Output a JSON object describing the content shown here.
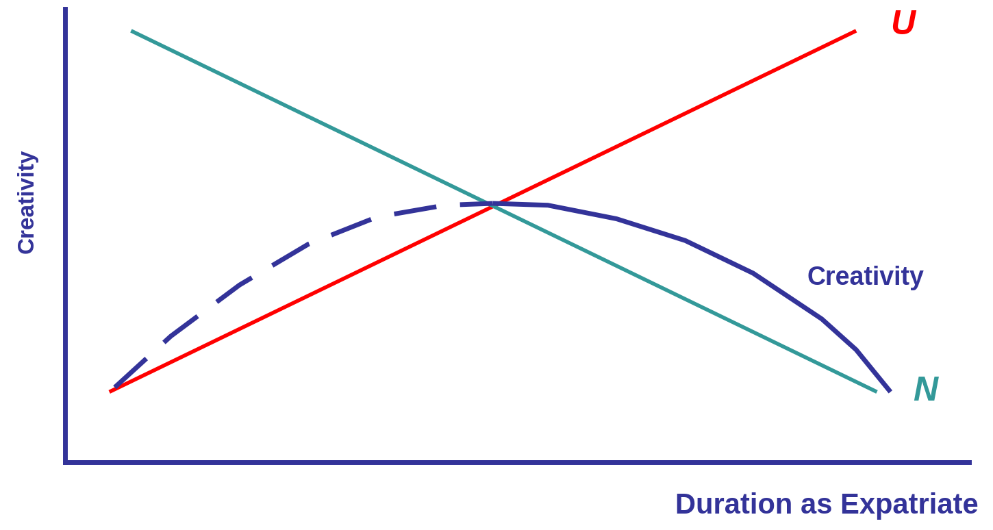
{
  "chart_data": {
    "type": "line",
    "x_label": "Duration as Expatriate",
    "y_label": "Creativity",
    "xlim": [
      0,
      10
    ],
    "ylim": [
      0,
      10
    ],
    "xticks": [],
    "yticks": [],
    "tick_labels": false,
    "grid": false,
    "series": [
      {
        "name": "U",
        "color": "#ff0000",
        "line_style": "solid",
        "x": [
          0.49,
          8.75
        ],
        "values": [
          1.55,
          9.52
        ]
      },
      {
        "name": "N",
        "color": "#339999",
        "line_style": "solid",
        "x": [
          0.73,
          8.98
        ],
        "values": [
          9.52,
          1.55
        ]
      },
      {
        "name": "Creativity",
        "color": "#333399",
        "line_style": "solid",
        "x": [
          4.73,
          5.34,
          6.1,
          6.86,
          7.61,
          8.37,
          8.75,
          9.13
        ],
        "values": [
          5.71,
          5.67,
          5.37,
          4.89,
          4.17,
          3.16,
          2.48,
          1.55
        ]
      },
      {
        "color": "#333399",
        "line_style": "dashed",
        "x": [
          0.55,
          1.17,
          1.93,
          2.69,
          3.45,
          4.2,
          4.73
        ],
        "values": [
          1.65,
          2.78,
          3.91,
          4.81,
          5.41,
          5.67,
          5.71
        ]
      }
    ]
  }
}
